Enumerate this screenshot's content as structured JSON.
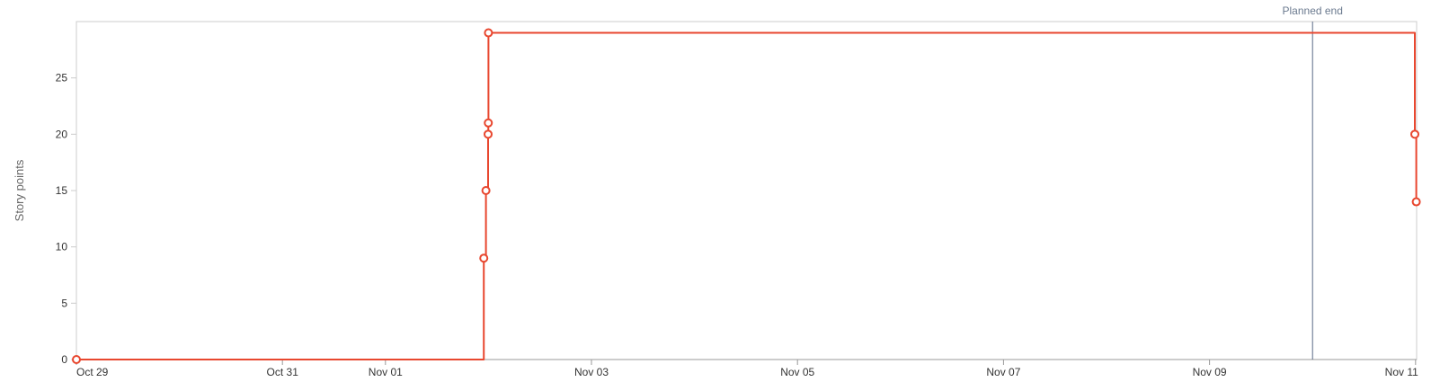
{
  "chart_data": {
    "type": "line",
    "title": "",
    "xlabel": "",
    "ylabel": "Story points",
    "x_ticks": [
      "Oct 29",
      "Oct 31",
      "Nov 01",
      "Nov 03",
      "Nov 05",
      "Nov 07",
      "Nov 09",
      "Nov 11"
    ],
    "x_tick_dates": [
      "2023-10-29",
      "2023-10-31",
      "2023-11-01",
      "2023-11-03",
      "2023-11-05",
      "2023-11-07",
      "2023-11-09",
      "2023-11-11"
    ],
    "xlim": [
      "2023-10-29T00:00",
      "2023-11-11T00:15"
    ],
    "ylim": [
      0,
      30
    ],
    "y_ticks": [
      0,
      5,
      10,
      15,
      20,
      25
    ],
    "grid": false,
    "series": [
      {
        "color": "#e8472f",
        "step": true,
        "points": [
          {
            "x": "2023-10-29T00:00",
            "y": 0,
            "marker": true
          },
          {
            "x": "2023-11-01T22:55",
            "y": 9,
            "marker": true
          },
          {
            "x": "2023-11-01T23:25",
            "y": 15,
            "marker": true
          },
          {
            "x": "2023-11-01T23:55",
            "y": 20,
            "marker": true
          },
          {
            "x": "2023-11-01T23:58",
            "y": 21,
            "marker": true
          },
          {
            "x": "2023-11-02T00:00",
            "y": 29,
            "marker": true
          },
          {
            "x": "2023-11-10T23:00",
            "y": 29,
            "marker": false
          },
          {
            "x": "2023-11-10T23:50",
            "y": 20,
            "marker": true
          },
          {
            "x": "2023-11-11T00:10",
            "y": 14,
            "marker": true
          }
        ]
      }
    ],
    "annotations": [
      {
        "type": "vertical-line",
        "x": "2023-11-10T00:00",
        "label": "Planned end",
        "color": "#5b6a86"
      }
    ]
  }
}
